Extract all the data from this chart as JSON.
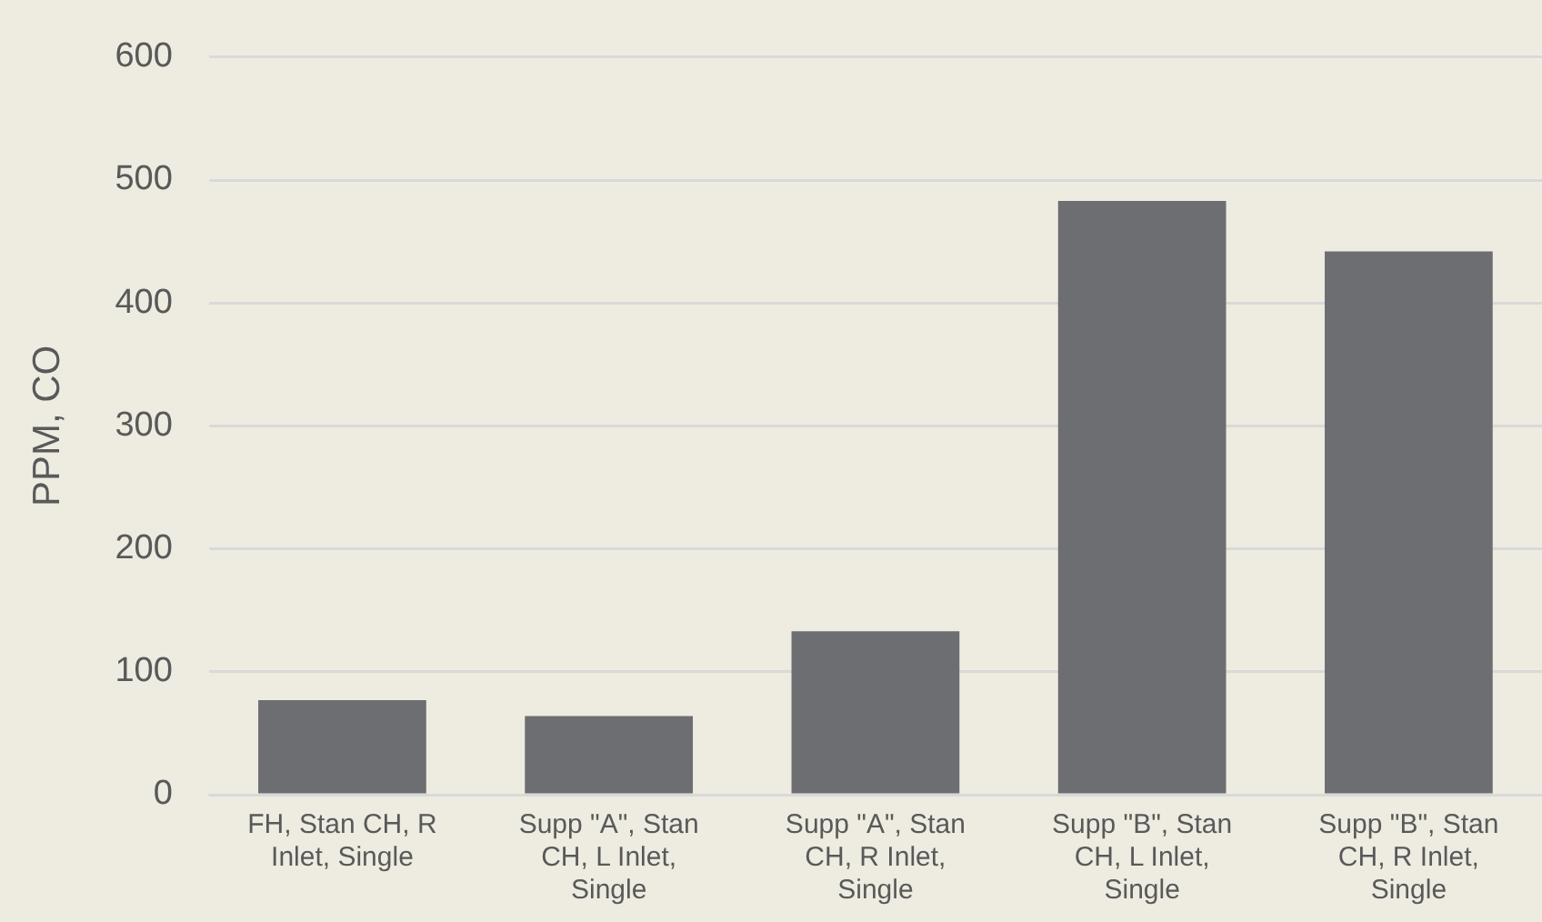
{
  "chart_data": {
    "type": "bar",
    "ylabel": "PPM, CO",
    "categories": [
      "FH, Stan CH, R Inlet, Single",
      "Supp \"A\", Stan CH, L Inlet, Single",
      "Supp \"A\", Stan CH, R Inlet, Single",
      "Supp \"B\", Stan CH, L Inlet, Single",
      "Supp \"B\", Stan CH, R Inlet, Single"
    ],
    "values": [
      77,
      64,
      133,
      483,
      442
    ],
    "color": "#6d6e71",
    "ylim": [
      0,
      600
    ],
    "yticks": [
      0,
      100,
      200,
      300,
      400,
      500,
      600
    ],
    "grid": "y",
    "legend": false
  }
}
